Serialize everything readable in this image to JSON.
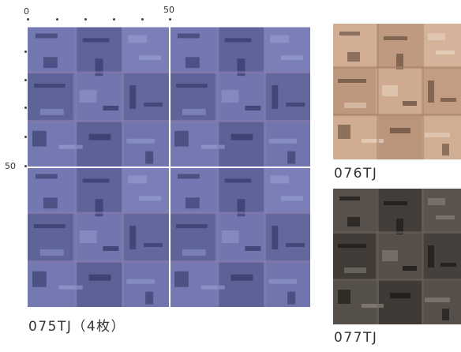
{
  "ruler": {
    "label_0": "0",
    "label_50_top": "50",
    "label_50_left": "50"
  },
  "tiles": {
    "main": {
      "caption": "075TJ（4枚）",
      "color": "#6a6fa8"
    },
    "beige": {
      "caption": "076TJ",
      "color": "#c9a48a"
    },
    "dark": {
      "caption": "077TJ",
      "color": "#4d4743"
    }
  }
}
